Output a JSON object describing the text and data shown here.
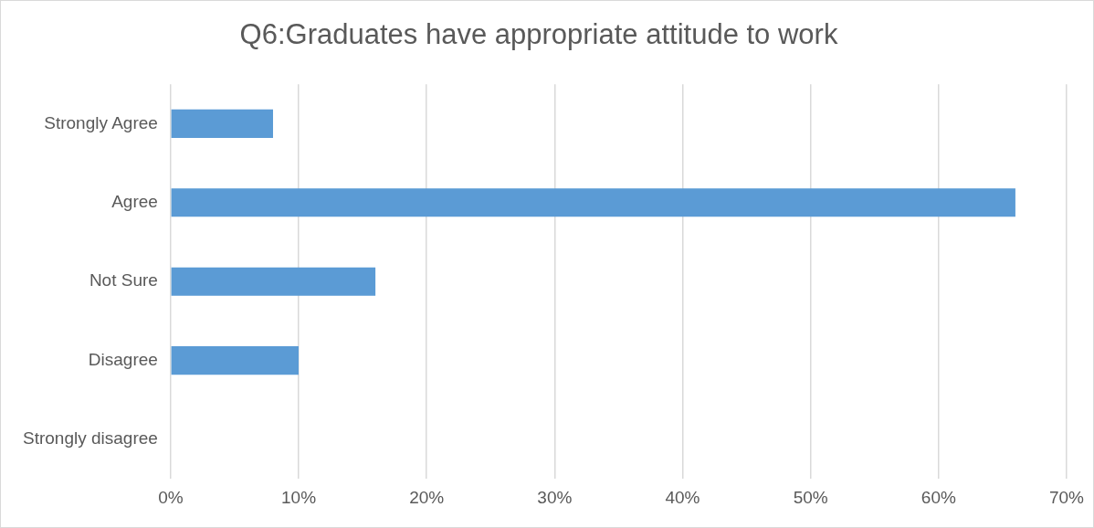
{
  "chart_data": {
    "type": "bar",
    "orientation": "horizontal",
    "title": "Q6:Graduates have appropriate attitude to work",
    "categories": [
      "Strongly Agree",
      "Agree",
      "Not Sure",
      "Disagree",
      "Strongly disagree"
    ],
    "values": [
      8,
      66,
      16,
      10,
      0
    ],
    "color": "#5b9bd5",
    "xlim": [
      0,
      70
    ],
    "xticks": [
      {
        "value": 0,
        "label": "0%"
      },
      {
        "value": 10,
        "label": "10%"
      },
      {
        "value": 20,
        "label": "20%"
      },
      {
        "value": 30,
        "label": "30%"
      },
      {
        "value": 40,
        "label": "40%"
      },
      {
        "value": 50,
        "label": "50%"
      },
      {
        "value": 60,
        "label": "60%"
      },
      {
        "value": 70,
        "label": "70%"
      }
    ],
    "grid": "x",
    "legend": false
  }
}
